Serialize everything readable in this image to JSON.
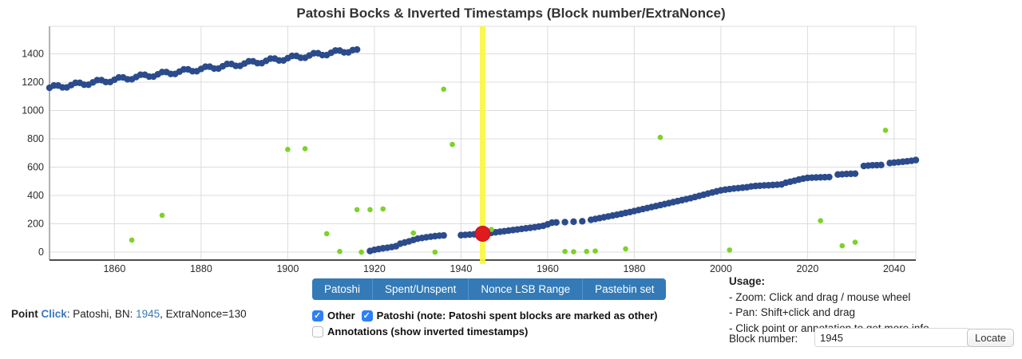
{
  "title": "Patoshi Bocks & Inverted Timestamps (Block number/ExtraNonce)",
  "colors": {
    "patoshi_blue": "#2b4b8c",
    "other_green": "#7cd228",
    "selected_red": "#e01b1f",
    "selected_line_yellow": "#FAF73F",
    "button_blue": "#337ab7",
    "link_blue": "#3a79bd",
    "grid": "#dcdcdc",
    "axis_y": "#8a8a8a",
    "axis_x": "#4d4d4d",
    "tick_text": "#2b2b2b"
  },
  "chart_data": {
    "type": "scatter",
    "title": "Patoshi Bocks & Inverted Timestamps (Block number/ExtraNonce)",
    "xlabel": "Block number",
    "ylabel": "ExtraNonce",
    "x_domain": [
      1845,
      2045
    ],
    "y_domain": [
      -56,
      1594
    ],
    "x_ticks": [
      1860,
      1880,
      1900,
      1920,
      1940,
      1960,
      1980,
      2000,
      2020,
      2040
    ],
    "y_ticks": [
      0,
      200,
      400,
      600,
      800,
      1000,
      1200,
      1400
    ],
    "grid": true,
    "legend": "none",
    "plot": {
      "l": 62,
      "t": 33,
      "r": 1147,
      "b": 326
    },
    "selected_block_line_x": 1945,
    "selected_point": {
      "x": 1945,
      "y": 130,
      "label": "Patoshi BN 1945 ExtraNonce 130"
    },
    "series": [
      {
        "name": "patoshi-blocks-upper",
        "color": "#2b4b8c",
        "r": 4.2,
        "points": [
          [
            1845,
            1160
          ],
          [
            1846,
            1176
          ],
          [
            1847,
            1176
          ],
          [
            1848,
            1163
          ],
          [
            1849,
            1163
          ],
          [
            1850,
            1179
          ],
          [
            1851,
            1195
          ],
          [
            1852,
            1195
          ],
          [
            1853,
            1182
          ],
          [
            1854,
            1182
          ],
          [
            1855,
            1198
          ],
          [
            1856,
            1214
          ],
          [
            1857,
            1214
          ],
          [
            1858,
            1201
          ],
          [
            1859,
            1201
          ],
          [
            1860,
            1217
          ],
          [
            1861,
            1233
          ],
          [
            1862,
            1233
          ],
          [
            1863,
            1220
          ],
          [
            1864,
            1220
          ],
          [
            1865,
            1236
          ],
          [
            1866,
            1252
          ],
          [
            1867,
            1252
          ],
          [
            1868,
            1239
          ],
          [
            1869,
            1239
          ],
          [
            1870,
            1255
          ],
          [
            1871,
            1271
          ],
          [
            1872,
            1271
          ],
          [
            1873,
            1258
          ],
          [
            1874,
            1258
          ],
          [
            1875,
            1274
          ],
          [
            1876,
            1290
          ],
          [
            1877,
            1290
          ],
          [
            1878,
            1277
          ],
          [
            1879,
            1277
          ],
          [
            1880,
            1293
          ],
          [
            1881,
            1309
          ],
          [
            1882,
            1309
          ],
          [
            1883,
            1296
          ],
          [
            1884,
            1296
          ],
          [
            1885,
            1312
          ],
          [
            1886,
            1328
          ],
          [
            1887,
            1328
          ],
          [
            1888,
            1315
          ],
          [
            1889,
            1315
          ],
          [
            1890,
            1331
          ],
          [
            1891,
            1347
          ],
          [
            1892,
            1347
          ],
          [
            1893,
            1334
          ],
          [
            1894,
            1334
          ],
          [
            1895,
            1350
          ],
          [
            1896,
            1366
          ],
          [
            1897,
            1366
          ],
          [
            1898,
            1353
          ],
          [
            1899,
            1353
          ],
          [
            1900,
            1369
          ],
          [
            1901,
            1385
          ],
          [
            1902,
            1385
          ],
          [
            1903,
            1372
          ],
          [
            1904,
            1372
          ],
          [
            1905,
            1388
          ],
          [
            1906,
            1404
          ],
          [
            1907,
            1404
          ],
          [
            1908,
            1391
          ],
          [
            1909,
            1391
          ],
          [
            1910,
            1407
          ],
          [
            1911,
            1423
          ],
          [
            1912,
            1423
          ],
          [
            1913,
            1410
          ],
          [
            1914,
            1410
          ],
          [
            1915,
            1426
          ],
          [
            1916,
            1430
          ]
        ]
      },
      {
        "name": "patoshi-blocks-lower",
        "color": "#2b4b8c",
        "r": 4.2,
        "points": [
          [
            1919,
            8
          ],
          [
            1920,
            16
          ],
          [
            1921,
            22
          ],
          [
            1922,
            27
          ],
          [
            1923,
            31
          ],
          [
            1924,
            36
          ],
          [
            1925,
            42
          ],
          [
            1926,
            60
          ],
          [
            1927,
            68
          ],
          [
            1928,
            76
          ],
          [
            1929,
            86
          ],
          [
            1930,
            95
          ],
          [
            1931,
            100
          ],
          [
            1932,
            105
          ],
          [
            1933,
            109
          ],
          [
            1934,
            113
          ],
          [
            1935,
            116
          ],
          [
            1936,
            118
          ],
          [
            1940,
            120
          ],
          [
            1941,
            122
          ],
          [
            1942,
            124
          ],
          [
            1943,
            126
          ],
          [
            1944,
            128
          ],
          [
            1945,
            130
          ],
          [
            1946,
            133
          ],
          [
            1947,
            136
          ],
          [
            1948,
            140
          ],
          [
            1949,
            144
          ],
          [
            1950,
            148
          ],
          [
            1951,
            152
          ],
          [
            1952,
            156
          ],
          [
            1953,
            160
          ],
          [
            1954,
            164
          ],
          [
            1955,
            168
          ],
          [
            1956,
            172
          ],
          [
            1957,
            176
          ],
          [
            1958,
            181
          ],
          [
            1959,
            186
          ],
          [
            1960,
            196
          ],
          [
            1961,
            208
          ],
          [
            1962,
            210
          ],
          [
            1964,
            212
          ],
          [
            1966,
            215
          ],
          [
            1968,
            218
          ],
          [
            1970,
            228
          ],
          [
            1971,
            234
          ],
          [
            1972,
            240
          ],
          [
            1973,
            246
          ],
          [
            1974,
            252
          ],
          [
            1975,
            258
          ],
          [
            1976,
            264
          ],
          [
            1977,
            270
          ],
          [
            1978,
            277
          ],
          [
            1979,
            283
          ],
          [
            1980,
            290
          ],
          [
            1981,
            297
          ],
          [
            1982,
            304
          ],
          [
            1983,
            311
          ],
          [
            1984,
            318
          ],
          [
            1985,
            325
          ],
          [
            1986,
            332
          ],
          [
            1987,
            339
          ],
          [
            1988,
            346
          ],
          [
            1989,
            353
          ],
          [
            1990,
            360
          ],
          [
            1991,
            367
          ],
          [
            1992,
            374
          ],
          [
            1993,
            381
          ],
          [
            1994,
            389
          ],
          [
            1995,
            397
          ],
          [
            1996,
            405
          ],
          [
            1997,
            413
          ],
          [
            1998,
            421
          ],
          [
            1999,
            429
          ],
          [
            2000,
            436
          ],
          [
            2001,
            441
          ],
          [
            2002,
            445
          ],
          [
            2003,
            449
          ],
          [
            2004,
            452
          ],
          [
            2005,
            455
          ],
          [
            2006,
            458
          ],
          [
            2007,
            464
          ],
          [
            2008,
            467
          ],
          [
            2009,
            469
          ],
          [
            2010,
            471
          ],
          [
            2011,
            472
          ],
          [
            2012,
            474
          ],
          [
            2013,
            476
          ],
          [
            2014,
            478
          ],
          [
            2015,
            490
          ],
          [
            2016,
            497
          ],
          [
            2017,
            504
          ],
          [
            2018,
            512
          ],
          [
            2019,
            519
          ],
          [
            2020,
            524
          ],
          [
            2021,
            526
          ],
          [
            2022,
            527
          ],
          [
            2023,
            528
          ],
          [
            2024,
            529
          ],
          [
            2025,
            530
          ],
          [
            2027,
            548
          ],
          [
            2028,
            550
          ],
          [
            2029,
            552
          ],
          [
            2030,
            553
          ],
          [
            2031,
            554
          ],
          [
            2033,
            608
          ],
          [
            2034,
            611
          ],
          [
            2035,
            613
          ],
          [
            2036,
            614
          ],
          [
            2037,
            615
          ],
          [
            2039,
            629
          ],
          [
            2040,
            632
          ],
          [
            2041,
            635
          ],
          [
            2042,
            638
          ],
          [
            2043,
            641
          ],
          [
            2044,
            645
          ],
          [
            2045,
            650
          ]
        ]
      },
      {
        "name": "other-blocks",
        "color": "#7cd228",
        "r": 3.3,
        "points": [
          [
            1864,
            85
          ],
          [
            1871,
            260
          ],
          [
            1900,
            725
          ],
          [
            1904,
            730
          ],
          [
            1909,
            130
          ],
          [
            1912,
            5
          ],
          [
            1916,
            300
          ],
          [
            1917,
            0
          ],
          [
            1919,
            300
          ],
          [
            1922,
            305
          ],
          [
            1929,
            135
          ],
          [
            1934,
            0
          ],
          [
            1936,
            1150
          ],
          [
            1938,
            760
          ],
          [
            1947,
            160
          ],
          [
            1964,
            5
          ],
          [
            1966,
            3
          ],
          [
            1969,
            5
          ],
          [
            1971,
            8
          ],
          [
            1978,
            23
          ],
          [
            1986,
            810
          ],
          [
            2002,
            15
          ],
          [
            2023,
            222
          ],
          [
            2028,
            45
          ],
          [
            2031,
            70
          ],
          [
            2038,
            860
          ]
        ]
      }
    ]
  },
  "toolbar": {
    "buttons": [
      "Patoshi",
      "Spent/Unspent",
      "Nonce LSB Range",
      "Pastebin set"
    ]
  },
  "filters": {
    "items": [
      {
        "label": "Other",
        "checked": true
      },
      {
        "label": "Patoshi (note: Patoshi spent blocks are marked as other)",
        "checked": true
      },
      {
        "label": "Annotations (show inverted timestamps)",
        "checked": false
      }
    ]
  },
  "point_info": {
    "prefix": "Point",
    "link": "Click",
    "mid": ": Patoshi, BN: ",
    "bn": "1945",
    "suffix": ", ExtraNonce=130"
  },
  "usage": {
    "heading": "Usage:",
    "lines": [
      "- Zoom: Click and drag / mouse wheel",
      "- Pan: Shift+click and drag",
      "- Click point or annotation to get more info"
    ]
  },
  "locator": {
    "label": "Block number:",
    "value": "1945",
    "button": "Locate"
  }
}
